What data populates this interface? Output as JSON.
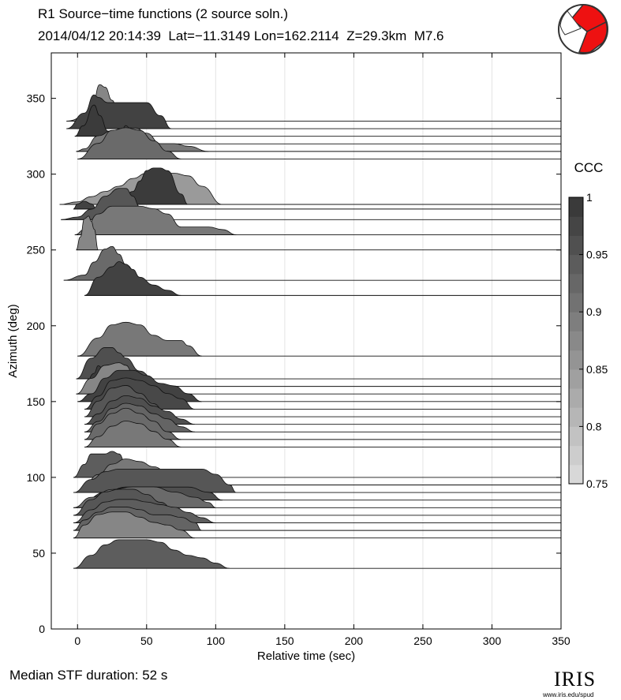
{
  "header": {
    "title": "R1 Source−time functions (2 source soln.)",
    "subtitle": "2014/04/12 20:14:39  Lat=−11.3149 Lon=162.2114  Z=29.3km  M7.6"
  },
  "footer": {
    "median_text": "Median STF duration: 52 s",
    "logo_text": "IRIS",
    "logo_url": "www.iris.edu/spud"
  },
  "colors": {
    "beachball_fill": "#ee1111",
    "beachball_line": "#333333"
  },
  "colorbar": {
    "title": "CCC",
    "ticks": [
      {
        "label": "1",
        "value": 1
      },
      {
        "label": "0.95",
        "value": 0.95
      },
      {
        "label": "0.9",
        "value": 0.9
      },
      {
        "label": "0.85",
        "value": 0.85
      },
      {
        "label": "0.8",
        "value": 0.8
      },
      {
        "label": "0.75",
        "value": 0.75
      }
    ],
    "range": [
      0.75,
      1
    ]
  },
  "chart_data": {
    "type": "area",
    "xlabel": "Relative time (sec)",
    "ylabel": "Azimuth (deg)",
    "xlim": [
      -19,
      350
    ],
    "ylim": [
      0,
      380
    ],
    "xticks": [
      {
        "label": "0",
        "value": 0
      },
      {
        "label": "50",
        "value": 50
      },
      {
        "label": "100",
        "value": 100
      },
      {
        "label": "150",
        "value": 150
      },
      {
        "label": "200",
        "value": 200
      },
      {
        "label": "250",
        "value": 250
      },
      {
        "label": "300",
        "value": 300
      },
      {
        "label": "350",
        "value": 350
      }
    ],
    "yticks": [
      {
        "label": "0",
        "value": 0
      },
      {
        "label": "50",
        "value": 50
      },
      {
        "label": "100",
        "value": 100
      },
      {
        "label": "150",
        "value": 150
      },
      {
        "label": "200",
        "value": 200
      },
      {
        "label": "250",
        "value": 250
      },
      {
        "label": "300",
        "value": 300
      },
      {
        "label": "350",
        "value": 350
      }
    ],
    "grid": "vertical",
    "traces": [
      {
        "azimuth": 335,
        "ccc": 0.88,
        "x": [
          -8,
          10,
          16,
          20,
          25,
          30,
          40
        ],
        "y": [
          0,
          3,
          14,
          13,
          8,
          2,
          0
        ]
      },
      {
        "azimuth": 330,
        "ccc": 0.98,
        "x": [
          -8,
          5,
          12,
          15,
          22,
          30,
          40,
          50,
          60,
          68
        ],
        "y": [
          0,
          6,
          13,
          12,
          10,
          10,
          10,
          10,
          5,
          0
        ]
      },
      {
        "azimuth": 325,
        "ccc": 0.99,
        "x": [
          -2,
          4,
          12,
          16,
          22,
          28
        ],
        "y": [
          0,
          4,
          12,
          8,
          2,
          0
        ]
      },
      {
        "azimuth": 320,
        "ccc": 0.98,
        "x": [
          25,
          30,
          35,
          38,
          42,
          50
        ],
        "y": [
          0,
          2,
          7,
          6,
          2,
          0
        ]
      },
      {
        "azimuth": 315,
        "ccc": 0.9,
        "x": [
          -1,
          5,
          15,
          25,
          35,
          42,
          50,
          60,
          70,
          80,
          95
        ],
        "y": [
          0,
          1,
          6,
          8,
          9,
          9,
          7,
          3,
          3,
          2,
          0
        ]
      },
      {
        "azimuth": 310,
        "ccc": 0.92,
        "x": [
          0,
          15,
          25,
          35,
          45,
          55,
          65,
          75
        ],
        "y": [
          0,
          6,
          11,
          12,
          11,
          7,
          3,
          0
        ]
      },
      {
        "azimuth": 280,
        "ccc": 0.85,
        "x": [
          -13,
          0,
          10,
          20,
          30,
          40,
          50,
          60,
          70,
          80,
          90,
          105
        ],
        "y": [
          0,
          1,
          3,
          5,
          7,
          10,
          12,
          12,
          12,
          11,
          7,
          0
        ]
      },
      {
        "azimuth": 280,
        "ccc": 0.99,
        "x": [
          30,
          40,
          45,
          50,
          55,
          60,
          65,
          75,
          80
        ],
        "y": [
          0,
          5,
          9,
          13,
          14,
          14,
          13,
          4,
          0
        ]
      },
      {
        "azimuth": 277,
        "ccc": 0.98,
        "x": [
          -3,
          0,
          5,
          10,
          14
        ],
        "y": [
          0,
          2,
          3,
          2,
          0
        ]
      },
      {
        "azimuth": 270,
        "ccc": 0.95,
        "x": [
          -12,
          0,
          10,
          20,
          30,
          35,
          40,
          45,
          55
        ],
        "y": [
          0,
          1,
          4,
          9,
          12,
          12,
          9,
          5,
          0
        ]
      },
      {
        "azimuth": 260,
        "ccc": 0.9,
        "x": [
          -2,
          5,
          15,
          25,
          35,
          45,
          55,
          65,
          75,
          85,
          95,
          105,
          115
        ],
        "y": [
          0,
          2,
          8,
          11,
          11,
          11,
          10,
          8,
          3,
          3,
          3,
          2,
          0
        ]
      },
      {
        "azimuth": 250,
        "ccc": 0.88,
        "x": [
          -1,
          2,
          5,
          8,
          10,
          12,
          15
        ],
        "y": [
          0,
          5,
          12,
          13,
          11,
          8,
          0
        ]
      },
      {
        "azimuth": 230,
        "ccc": 0.92,
        "x": [
          -10,
          5,
          12,
          20,
          25,
          30,
          35,
          45
        ],
        "y": [
          0,
          2,
          7,
          12,
          13,
          10,
          6,
          0
        ]
      },
      {
        "azimuth": 220,
        "ccc": 0.98,
        "x": [
          5,
          15,
          25,
          30,
          35,
          40,
          45,
          55,
          65,
          75
        ],
        "y": [
          0,
          7,
          11,
          13,
          12,
          10,
          7,
          4,
          2,
          0
        ]
      },
      {
        "azimuth": 180,
        "ccc": 0.9,
        "x": [
          0,
          15,
          25,
          35,
          45,
          55,
          65,
          75,
          80,
          90
        ],
        "y": [
          0,
          7,
          12,
          13,
          12,
          8,
          6,
          6,
          4,
          0
        ]
      },
      {
        "azimuth": 165,
        "ccc": 0.96,
        "x": [
          -1,
          10,
          20,
          25,
          30,
          35,
          45,
          55
        ],
        "y": [
          0,
          8,
          12,
          12,
          10,
          8,
          3,
          0
        ]
      },
      {
        "azimuth": 160,
        "ccc": 0.99,
        "x": [
          5,
          12,
          15,
          18,
          22,
          28
        ],
        "y": [
          0,
          5,
          8,
          7,
          3,
          0
        ]
      },
      {
        "azimuth": 155,
        "ccc": 0.88,
        "x": [
          -1,
          10,
          20,
          30,
          35,
          40,
          45,
          55,
          65
        ],
        "y": [
          0,
          6,
          11,
          12,
          11,
          8,
          5,
          3,
          0
        ]
      },
      {
        "azimuth": 150,
        "ccc": 0.98,
        "x": [
          0,
          10,
          20,
          30,
          40,
          50,
          60,
          70,
          80,
          90
        ],
        "y": [
          0,
          3,
          9,
          12,
          12,
          10,
          7,
          6,
          3,
          0
        ]
      },
      {
        "azimuth": 145,
        "ccc": 0.97,
        "x": [
          5,
          15,
          25,
          35,
          45,
          55,
          65,
          75,
          85
        ],
        "y": [
          0,
          5,
          11,
          12,
          11,
          9,
          6,
          4,
          0
        ]
      },
      {
        "azimuth": 140,
        "ccc": 0.95,
        "x": [
          5,
          15,
          25,
          35,
          45,
          55,
          65
        ],
        "y": [
          0,
          6,
          11,
          12,
          9,
          5,
          0
        ]
      },
      {
        "azimuth": 135,
        "ccc": 0.96,
        "x": [
          5,
          15,
          25,
          35,
          45,
          55,
          65,
          75,
          85
        ],
        "y": [
          0,
          4,
          9,
          11,
          10,
          7,
          5,
          2,
          0
        ]
      },
      {
        "azimuth": 130,
        "ccc": 0.93,
        "x": [
          5,
          15,
          25,
          35,
          45,
          55,
          65,
          75,
          85
        ],
        "y": [
          0,
          4,
          9,
          11,
          10,
          7,
          5,
          2,
          0
        ]
      },
      {
        "azimuth": 125,
        "ccc": 0.92,
        "x": [
          5,
          15,
          25,
          35,
          45,
          55,
          65,
          75
        ],
        "y": [
          0,
          6,
          10,
          12,
          10,
          7,
          3,
          0
        ]
      },
      {
        "azimuth": 120,
        "ccc": 0.9,
        "x": [
          5,
          15,
          25,
          35,
          45,
          55,
          65,
          75
        ],
        "y": [
          0,
          4,
          8,
          10,
          9,
          6,
          3,
          0
        ]
      },
      {
        "azimuth": 100,
        "ccc": 0.94,
        "x": [
          -3,
          5,
          10,
          15,
          20,
          25,
          30,
          35,
          45
        ],
        "y": [
          0,
          5,
          9,
          9,
          9,
          10,
          9,
          5,
          0
        ]
      },
      {
        "azimuth": 95,
        "ccc": 0.9,
        "x": [
          5,
          15,
          25,
          35,
          45,
          55,
          65,
          75,
          85
        ],
        "y": [
          0,
          4,
          8,
          10,
          9,
          7,
          5,
          3,
          0
        ]
      },
      {
        "azimuth": 90,
        "ccc": 0.95,
        "x": [
          -3,
          10,
          20,
          30,
          40,
          50,
          60,
          70,
          80,
          90,
          100,
          110,
          115
        ],
        "y": [
          0,
          5,
          8,
          9,
          9,
          9,
          9,
          9,
          9,
          9,
          7,
          3,
          0
        ]
      },
      {
        "azimuth": 85,
        "ccc": 0.96,
        "x": [
          5,
          20,
          35,
          50,
          65,
          80,
          95,
          105
        ],
        "y": [
          0,
          3,
          5,
          5,
          5,
          5,
          3,
          0
        ]
      },
      {
        "azimuth": 80,
        "ccc": 0.92,
        "x": [
          -3,
          10,
          25,
          40,
          55,
          70,
          85,
          95,
          100
        ],
        "y": [
          0,
          4,
          7,
          8,
          8,
          6,
          4,
          2,
          0
        ]
      },
      {
        "azimuth": 75,
        "ccc": 0.95,
        "x": [
          -3,
          10,
          20,
          30,
          40,
          50,
          60,
          70,
          80
        ],
        "y": [
          0,
          6,
          9,
          10,
          10,
          8,
          5,
          2,
          0
        ]
      },
      {
        "azimuth": 70,
        "ccc": 0.94,
        "x": [
          -3,
          10,
          20,
          30,
          40,
          50,
          60,
          70,
          80,
          90,
          100
        ],
        "y": [
          0,
          5,
          8,
          9,
          9,
          8,
          7,
          6,
          4,
          2,
          0
        ]
      },
      {
        "azimuth": 65,
        "ccc": 0.93,
        "x": [
          -3,
          5,
          15,
          25,
          35,
          45,
          55,
          65,
          75,
          85,
          90
        ],
        "y": [
          0,
          4,
          7,
          9,
          9,
          8,
          6,
          6,
          5,
          3,
          0
        ]
      },
      {
        "azimuth": 60,
        "ccc": 0.88,
        "x": [
          -3,
          5,
          15,
          25,
          35,
          45,
          55,
          65,
          75,
          85
        ],
        "y": [
          0,
          5,
          9,
          10,
          10,
          8,
          6,
          5,
          3,
          0
        ]
      },
      {
        "azimuth": 40,
        "ccc": 0.94,
        "x": [
          -3,
          10,
          20,
          30,
          40,
          50,
          60,
          70,
          80,
          90,
          100,
          110
        ],
        "y": [
          0,
          5,
          9,
          11,
          11,
          11,
          10,
          7,
          5,
          4,
          2,
          0
        ]
      }
    ]
  }
}
